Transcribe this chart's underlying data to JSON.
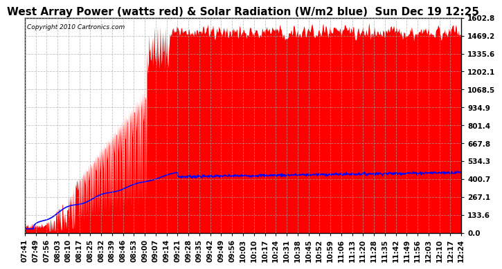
{
  "title": "West Array Power (watts red) & Solar Radiation (W/m2 blue)  Sun Dec 19 12:25",
  "copyright": "Copyright 2010 Cartronics.com",
  "y_right_ticks": [
    0.0,
    133.6,
    267.1,
    400.7,
    534.3,
    667.8,
    801.4,
    934.9,
    1068.5,
    1202.1,
    1335.6,
    1469.2,
    1602.8
  ],
  "ymax": 1602.8,
  "ymin": 0.0,
  "background_color": "#ffffff",
  "grid_color": "#aaaaaa",
  "red_fill_color": "#ff0000",
  "blue_line_color": "#0000ff",
  "x_labels": [
    "07:41",
    "07:49",
    "07:56",
    "08:03",
    "08:10",
    "08:17",
    "08:25",
    "08:32",
    "08:39",
    "08:46",
    "08:53",
    "09:00",
    "09:07",
    "09:14",
    "09:21",
    "09:28",
    "09:35",
    "09:42",
    "09:49",
    "09:56",
    "10:03",
    "10:10",
    "10:17",
    "10:24",
    "10:31",
    "10:38",
    "10:45",
    "10:52",
    "10:59",
    "11:06",
    "11:13",
    "11:20",
    "11:28",
    "11:35",
    "11:42",
    "11:49",
    "11:56",
    "12:03",
    "12:10",
    "12:17",
    "12:24"
  ],
  "n_labels": 41,
  "title_fontsize": 11,
  "axis_fontsize": 7.5
}
